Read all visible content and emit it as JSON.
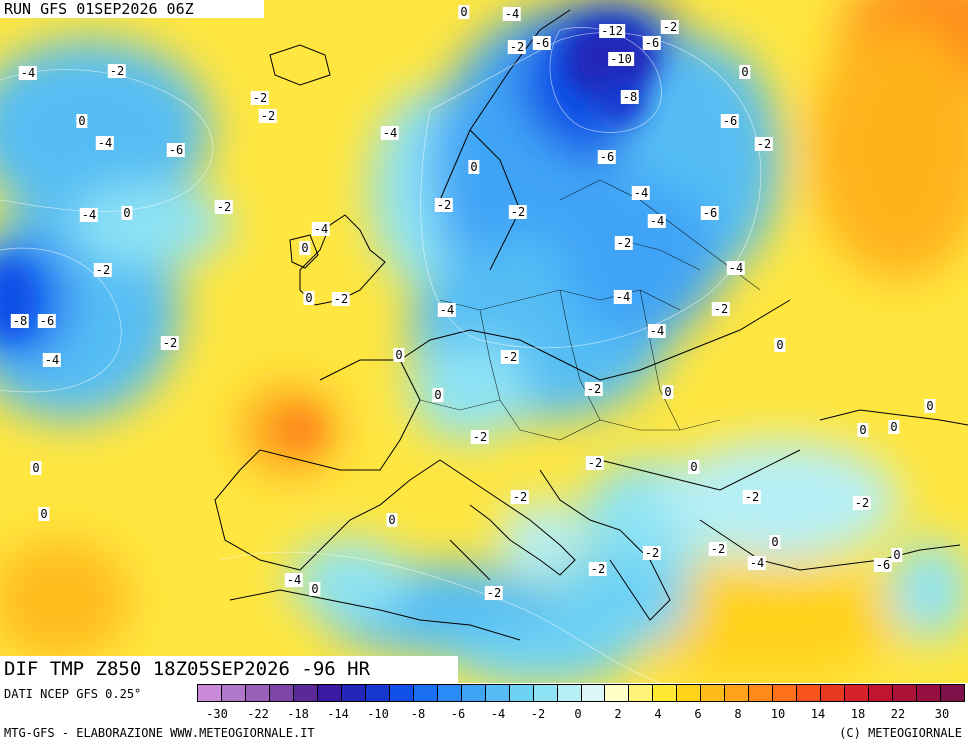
{
  "header": {
    "run_label": "RUN GFS 01SEP2026 06Z",
    "title": "DIF TMP Z850 18Z05SEP2026 -96 HR"
  },
  "footer": {
    "source": "DATI NCEP GFS 0.25°",
    "credits_left": "MTG-GFS - ELABORAZIONE WWW.METEOGIORNALE.IT",
    "credits_right": "(C) METEOGIORNALE"
  },
  "legend": {
    "colors": [
      "#c98bd8",
      "#b076c8",
      "#9a5fb8",
      "#7f45a6",
      "#5a2a96",
      "#3a1aa0",
      "#2426b8",
      "#1638cf",
      "#1150e6",
      "#1a6ef2",
      "#2a8bf6",
      "#3fa4f6",
      "#55bdf4",
      "#6ed2f4",
      "#8ee3f4",
      "#b6eff6",
      "#ddf7f7",
      "#ffffc8",
      "#fff47a",
      "#ffe832",
      "#ffd21a",
      "#ffbb1a",
      "#ffa31a",
      "#ff8a1a",
      "#ff701a",
      "#f7531a",
      "#e8381f",
      "#d42228",
      "#c01530",
      "#aa1238",
      "#951040",
      "#80104a"
    ],
    "tick_labels": [
      "-30",
      "-22",
      "-18",
      "-14",
      "-10",
      "-8",
      "-6",
      "-4",
      "-2",
      "0",
      "2",
      "4",
      "6",
      "8",
      "10",
      "14",
      "18",
      "22",
      "30"
    ]
  },
  "map_labels": [
    "0",
    "-4",
    "-12",
    "-2",
    "-2",
    "-6",
    "-6",
    "-4",
    "-2",
    "-10",
    "0",
    "-2",
    "-8",
    "-2",
    "0",
    "-6",
    "-4",
    "-6",
    "-2",
    "-4",
    "-6",
    "0",
    "-4",
    "-2",
    "-4",
    "0",
    "-2",
    "-2",
    "-4",
    "-6",
    "-4",
    "0",
    "-2",
    "-4",
    "-2",
    "-4",
    "-8",
    "-6",
    "0",
    "-2",
    "-2",
    "-4",
    "-4",
    "-4",
    "-2",
    "0",
    "0",
    "-2",
    "-2",
    "0",
    "0",
    "0",
    "-2",
    "0",
    "0",
    "0",
    "-2",
    "0",
    "-2",
    "-2",
    "-2",
    "0",
    "0",
    "0",
    "-2",
    "-2",
    "-2",
    "-4",
    "-6",
    "0",
    "-4",
    "0",
    "-2"
  ],
  "colors": {
    "background": "#ffffff",
    "border_lines": "#000000",
    "warm_anomaly": "#ffe832",
    "cold_anomaly": "#2a8bf6"
  }
}
